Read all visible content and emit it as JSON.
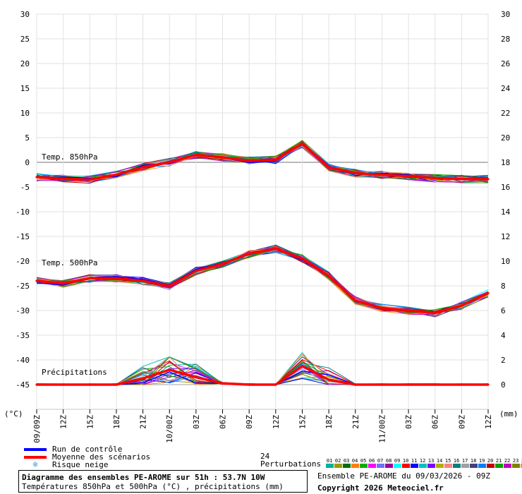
{
  "chart_data": {
    "type": "line",
    "x_ticks": [
      "09/09Z",
      "12Z",
      "15Z",
      "18Z",
      "21Z",
      "10/00Z",
      "03Z",
      "06Z",
      "09Z",
      "12Z",
      "15Z",
      "18Z",
      "21Z",
      "11/00Z",
      "03Z",
      "06Z",
      "09Z",
      "12Z"
    ],
    "y_left": {
      "label": "(°C)",
      "ticks": [
        30,
        25,
        20,
        15,
        10,
        5,
        0,
        -5,
        -10,
        -15,
        -20,
        -25,
        -30,
        -35,
        -40,
        -45
      ],
      "range": [
        -45,
        30
      ]
    },
    "y_right": {
      "label": "(mm)",
      "ticks": [
        30,
        28,
        26,
        24,
        22,
        20,
        18,
        16,
        14,
        12,
        10,
        8,
        6,
        4,
        2,
        0
      ],
      "range": [
        0,
        30
      ]
    },
    "panel_labels": [
      "Temp. 850hPa",
      "Temp. 500hPa",
      "Précipitations"
    ],
    "x_hours": [
      0,
      3,
      6,
      9,
      12,
      15,
      18,
      21,
      24,
      27,
      30,
      33,
      36,
      39,
      42,
      45,
      48,
      51
    ],
    "series": [
      {
        "name": "Moyenne des scénarios",
        "panel": "Temp. 850hPa",
        "color": "#ff0000",
        "values": [
          -3,
          -3.3,
          -3.5,
          -2.5,
          -1,
          0,
          1.5,
          1,
          0.3,
          0.5,
          3.8,
          -1,
          -2.2,
          -2.5,
          -2.8,
          -3.2,
          -3.4,
          -3.4
        ]
      },
      {
        "name": "Moyenne des scénarios",
        "panel": "Temp. 500hPa",
        "color": "#ff0000",
        "values": [
          -24,
          -24.5,
          -23.5,
          -23.5,
          -24,
          -25,
          -22,
          -20.5,
          -18.5,
          -17.5,
          -19.5,
          -23,
          -28,
          -29.5,
          -30,
          -30.5,
          -29,
          -26.5
        ]
      },
      {
        "name": "Moyenne des scénarios",
        "panel": "Précipitations",
        "color": "#ff0000",
        "unit": "mm",
        "values": [
          0,
          0,
          0,
          0,
          0.5,
          1.2,
          0.6,
          0.1,
          0,
          0,
          1.5,
          0.4,
          0,
          0,
          0,
          0,
          0,
          0
        ]
      }
    ],
    "perturbation_colors": [
      "#00b0a0",
      "#9b9b00",
      "#007000",
      "#ff7f00",
      "#00b000",
      "#ff00ff",
      "#7070ff",
      "#a000a0",
      "#00ffff",
      "#ff0000",
      "#0000ff",
      "#00c0c0",
      "#8000ff",
      "#b0b000",
      "#ff8080",
      "#008080",
      "#a0a0a0",
      "#404080",
      "#0080ff",
      "#c00000",
      "#00a000",
      "#c000c0",
      "#808000",
      "#ff9040"
    ],
    "grid": true
  },
  "legend": {
    "control": {
      "label": "Run de contrôle",
      "color": "#0000ff"
    },
    "mean": {
      "label": "Moyenne des scénarios",
      "color": "#ff0000"
    },
    "snow": {
      "label": "Risque neige",
      "icon": "snowflake-icon"
    }
  },
  "perturbations": {
    "label": "24 Perturbations",
    "numbers": [
      "01",
      "02",
      "03",
      "04",
      "05",
      "06",
      "07",
      "08",
      "09",
      "10",
      "11",
      "12",
      "13",
      "14",
      "15",
      "16",
      "17",
      "18",
      "19",
      "20",
      "21",
      "22",
      "23",
      "24"
    ],
    "colors": [
      "#00b0a0",
      "#9b9b00",
      "#007000",
      "#ff7f00",
      "#00b000",
      "#ff00ff",
      "#7070ff",
      "#a000a0",
      "#00ffff",
      "#ff0000",
      "#0000ff",
      "#00c0c0",
      "#8000ff",
      "#b0b000",
      "#ff8080",
      "#008080",
      "#a0a0a0",
      "#404080",
      "#0080ff",
      "#c00000",
      "#00a000",
      "#c000c0",
      "#808000",
      "#ff9040"
    ]
  },
  "info": {
    "title": "Diagramme des ensembles PE-AROME sur 51h : 53.7N 10W",
    "subtitle": "Températures 850hPa et 500hPa (°C) , précipitations (mm)",
    "run": "Ensemble PE-AROME du 09/03/2026 - 09Z",
    "copyright": "Copyright 2026 Meteociel.fr"
  }
}
